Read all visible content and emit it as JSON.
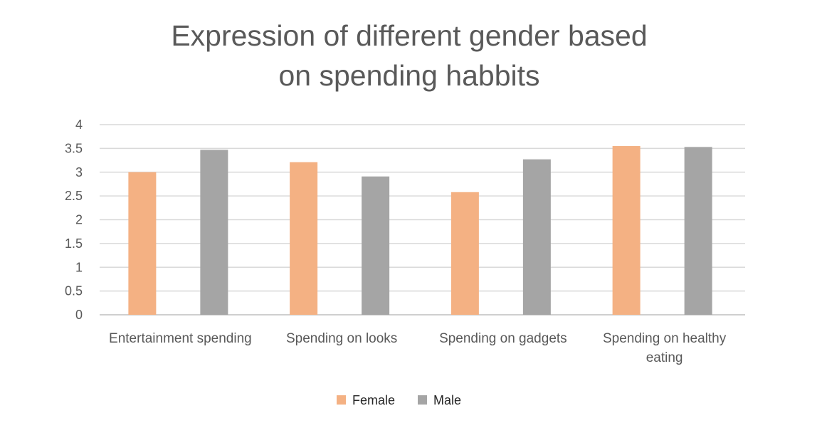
{
  "chart_data": {
    "type": "bar",
    "title": "Expression of different gender based\non spending habbits",
    "categories": [
      "Entertainment spending",
      "Spending on looks",
      "Spending on gadgets",
      "Spending on healthy eating"
    ],
    "series": [
      {
        "name": "Female",
        "color": "#f4b183",
        "values": [
          3.0,
          3.21,
          2.58,
          3.55
        ]
      },
      {
        "name": "Male",
        "color": "#a5a5a5",
        "values": [
          3.47,
          2.91,
          3.27,
          3.53
        ]
      }
    ],
    "ylim": [
      0,
      4
    ],
    "yticks": [
      "0",
      "0.5",
      "1",
      "1.5",
      "2",
      "2.5",
      "3",
      "3.5",
      "4"
    ],
    "grid": true,
    "legend_position": "bottom"
  }
}
